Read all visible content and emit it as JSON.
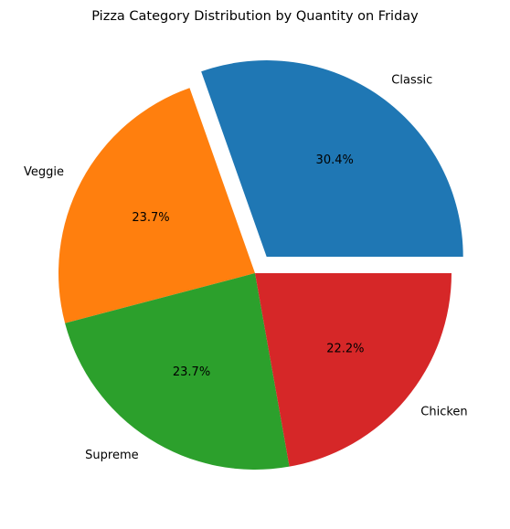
{
  "chart_data": {
    "type": "pie",
    "title": "Pizza Category Distribution by Quantity on Friday",
    "categories": [
      "Classic",
      "Veggie",
      "Supreme",
      "Chicken"
    ],
    "values": [
      30.4,
      23.7,
      23.7,
      22.2
    ],
    "percent_labels": [
      "30.4%",
      "23.7%",
      "23.7%",
      "22.2%"
    ],
    "colors": [
      "#1f77b4",
      "#ff7f0e",
      "#2ca02c",
      "#d62728"
    ],
    "exploded": [
      "Classic"
    ],
    "start_angle_deg": 0,
    "direction": "counterclockwise",
    "legend": "none"
  }
}
